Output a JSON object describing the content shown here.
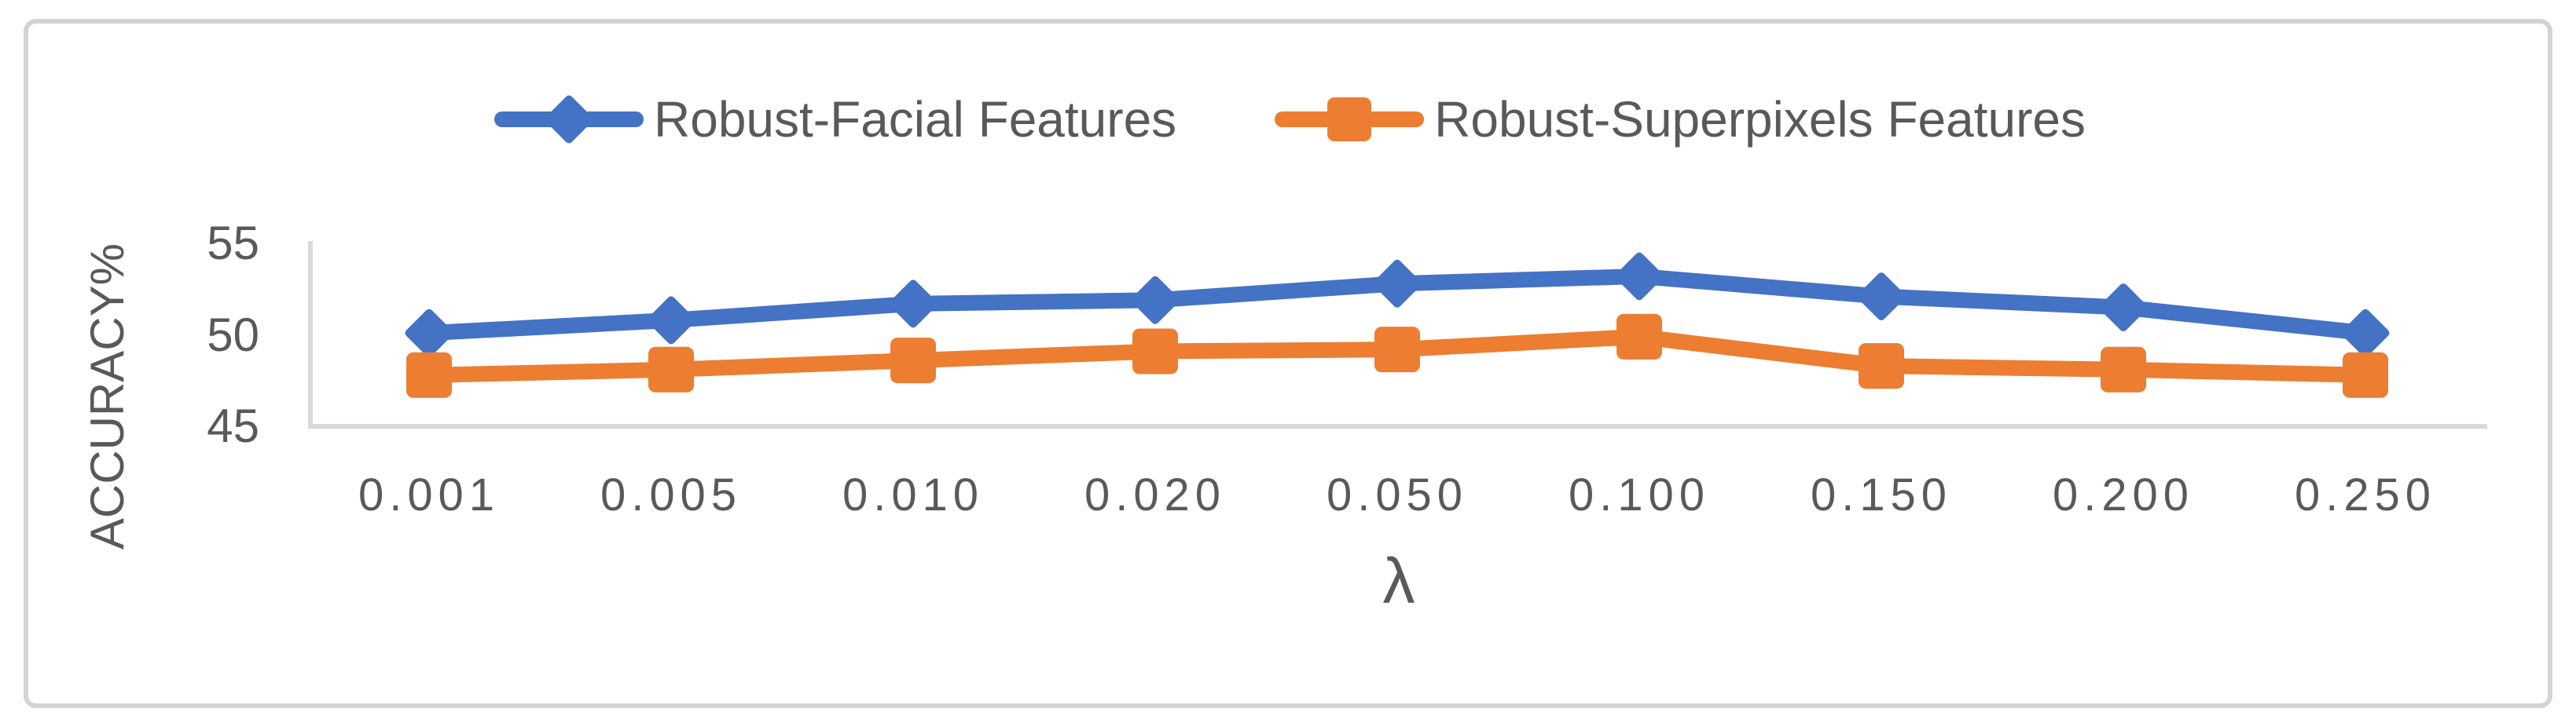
{
  "chart_data": {
    "type": "line",
    "title": "",
    "xlabel": "λ",
    "ylabel": "ACCURACY%",
    "categories": [
      "0.001",
      "0.005",
      "0.010",
      "0.020",
      "0.050",
      "0.100",
      "0.150",
      "0.200",
      "0.250"
    ],
    "ytick_labels": [
      "45",
      "50",
      "55"
    ],
    "ytick_values": [
      45,
      50,
      55
    ],
    "ylim": [
      45,
      55
    ],
    "grid": "off",
    "legend_position": "top-center",
    "series": [
      {
        "name": "Robust-Facial Features",
        "color": "#4472C4",
        "marker": "diamond",
        "values": [
          50.1,
          50.8,
          51.7,
          51.9,
          52.8,
          53.2,
          52.1,
          51.5,
          50.1
        ]
      },
      {
        "name": "Robust-Superpixels Features",
        "color": "#ED7D31",
        "marker": "square",
        "values": [
          47.8,
          48.1,
          48.6,
          49.1,
          49.2,
          49.9,
          48.3,
          48.1,
          47.8
        ]
      }
    ]
  },
  "colors": {
    "text": "#595959",
    "axis": "#D9D9D9",
    "frame": "#D3D3D3",
    "background": "#FFFFFF"
  }
}
